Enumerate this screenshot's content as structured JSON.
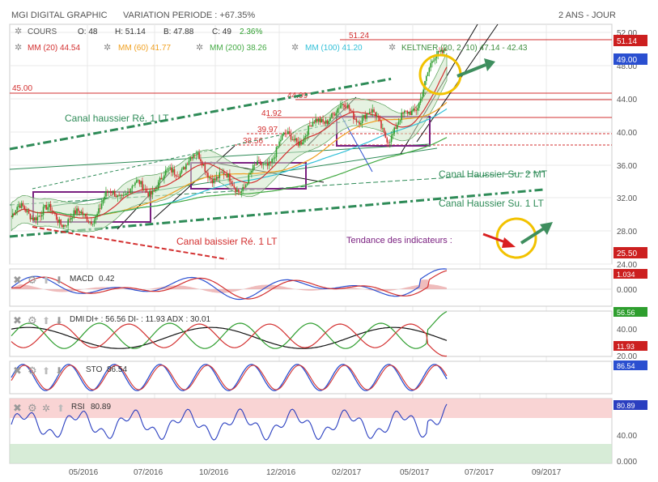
{
  "header": {
    "title": "MGI DIGITAL GRAPHIC",
    "variation_label": "VARIATION PERIODE : +67.35%",
    "period_label": "2 ANS - JOUR"
  },
  "legend": {
    "cours": {
      "label": "COURS",
      "o": "O: 48",
      "h": "H: 51.14",
      "b": "B: 47.88",
      "c": "C: 49",
      "chg": "2.36%"
    },
    "mm20": "MM (20)  44.54",
    "mm60": "MM (60)  41.77",
    "mm200": "MM (200)  38.26",
    "mm100": "MM (100)  41.20",
    "keltner": "KELTNER (20, 2, 10)  47.14 - 42.43"
  },
  "colors": {
    "up": "#2e9e2e",
    "down": "#d33030",
    "mm20": "#d33030",
    "mm60": "#f0a020",
    "mm200": "#44aa44",
    "mm100": "#33c0d8",
    "keltner": "#3e8e3e",
    "channel": "#2e8b57",
    "rect": "#7a2080",
    "arrow": "#2e8b57",
    "circle": "#f2c200"
  },
  "annotations": {
    "canal_haussier_re_1lt": "Canal haussier Ré. 1 LT",
    "canal_haussier_su_2mt": "Canal Haussier Su. 2 MT",
    "canal_haussier_su_1lt": "Canal Haussier Su. 1 LT",
    "canal_baissier_re_1lt": "Canal baissier Ré. 1 LT",
    "tendance": "Tendance des indicateurs :",
    "lvl_4500": "45.00",
    "lvl_5124": "51.24",
    "lvl_4409": "44.09",
    "lvl_4192": "41.92",
    "lvl_3997": "39.97",
    "lvl_3856": "38.56"
  },
  "price_panel": {
    "y_ticks": [
      "52.00",
      "48.00",
      "44.00",
      "40.00",
      "36.00",
      "32.00",
      "28.00",
      "24.00"
    ],
    "badges": [
      "51.14",
      "49.00",
      "25.50"
    ]
  },
  "macd": {
    "label": "MACD",
    "value": "0.42",
    "ticks": [
      "0.000"
    ],
    "badge": "1.034"
  },
  "dmi": {
    "label": "DMI",
    "text": "DI+ : 56.56 DI- : 11.93 ADX : 30.01",
    "ticks": [
      "40.00",
      "20.00"
    ],
    "badges": [
      "56.56",
      "11.93"
    ]
  },
  "sto": {
    "label": "STO",
    "value": "86.54",
    "badge": "86.54"
  },
  "rsi": {
    "label": "RSI",
    "value": "80.89",
    "ticks": [
      "40.00",
      "0.000"
    ],
    "badge": "80.89"
  },
  "x_axis": [
    "05/2016",
    "07/2016",
    "10/2016",
    "12/2016",
    "02/2017",
    "05/2017",
    "07/2017",
    "09/2017"
  ],
  "chart_data": {
    "type": "line",
    "title": "MGI DIGITAL GRAPHIC",
    "x_unit": "date",
    "y_unit": "EUR",
    "ylim": [
      24,
      52
    ],
    "series": [
      {
        "name": "COURS",
        "x": [
          "03/2016",
          "04/2016",
          "05/2016",
          "06/2016",
          "07/2016",
          "08/2016",
          "09/2016",
          "10/2016",
          "11/2016",
          "12/2016",
          "01/2017",
          "02/2017",
          "03/2017",
          "04/2017",
          "05/2017",
          "06/2017"
        ],
        "values": [
          29.5,
          29.0,
          30.5,
          30.0,
          32.0,
          34.5,
          35.5,
          34.0,
          34.5,
          36.0,
          39.0,
          43.0,
          40.5,
          39.5,
          44.0,
          49.0
        ]
      }
    ],
    "levels": [
      45.0,
      44.09,
      41.92,
      39.97,
      38.56,
      51.24
    ]
  }
}
